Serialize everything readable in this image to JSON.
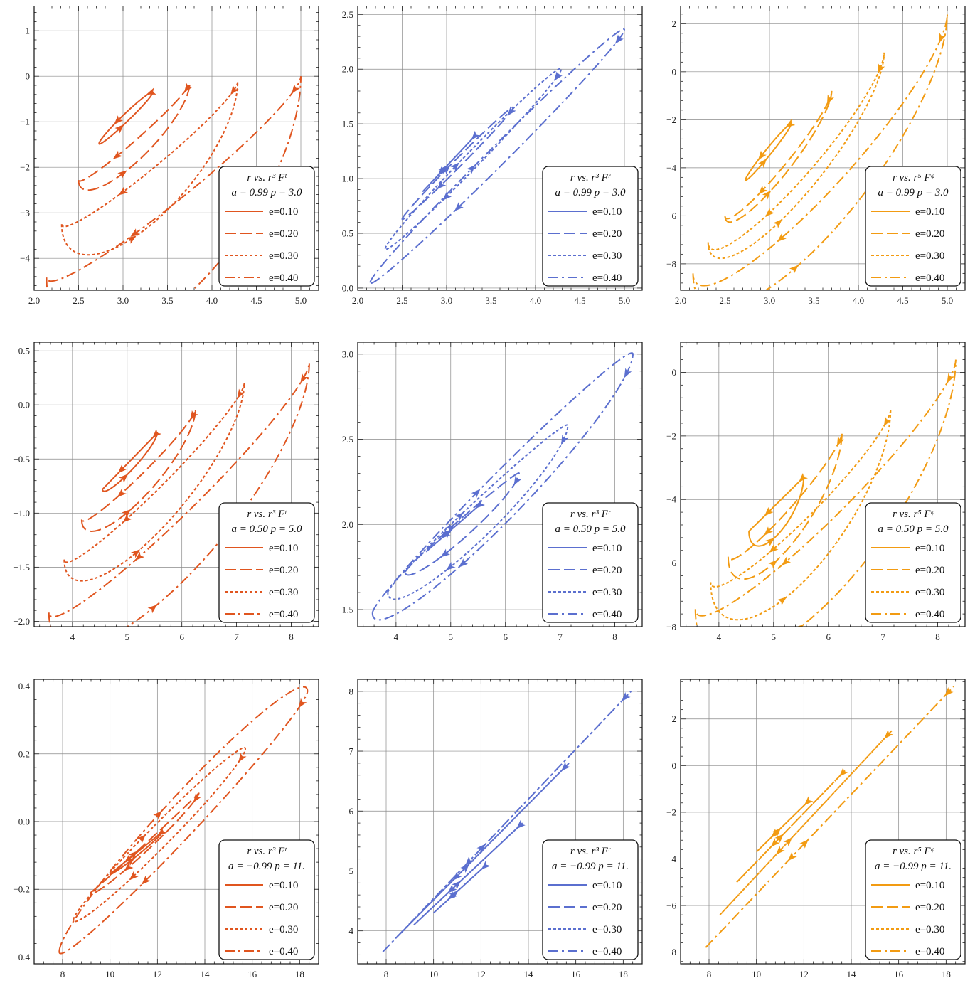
{
  "colors": {
    "Ft": "#e0551f",
    "Fr": "#5b6fcf",
    "Fphi": "#f29b12"
  },
  "legend_labels": [
    "e=0.10",
    "e=0.20",
    "e=0.30",
    "e=0.40"
  ],
  "charts": [
    {
      "id": "p1",
      "type": "line",
      "color": "Ft",
      "legend": {
        "title": "r vs. r³ Fᵗ",
        "params": "a = 0.99 p = 3.0"
      },
      "xlim": [
        2.0,
        5.2
      ],
      "ylim": [
        -4.7,
        1.55
      ],
      "xticks": [
        2.0,
        2.5,
        3.0,
        3.5,
        4.0,
        4.5,
        5.0
      ],
      "xtick_labels": [
        "2.0",
        "2.5",
        "3.0",
        "3.5",
        "4.0",
        "4.5",
        "5.0"
      ],
      "yticks": [
        -4,
        -3,
        -2,
        -1,
        0,
        1
      ],
      "ytick_labels": [
        "−4",
        "−3",
        "−2",
        "−1",
        "0",
        "1"
      ],
      "series": [
        {
          "e": 0.1,
          "rmin": 2.73,
          "rmax": 3.33,
          "yA": -1.48,
          "yB": -0.37,
          "yCA": -0.1,
          "yCB": -0.12
        },
        {
          "e": 0.2,
          "rmin": 2.5,
          "rmax": 3.75,
          "yA": -2.28,
          "yB": -0.15,
          "yCA": -0.72,
          "yCB": 0.22
        },
        {
          "e": 0.3,
          "rmin": 2.31,
          "rmax": 4.29,
          "yA": -3.25,
          "yB": -0.12,
          "yCA": -1.6,
          "yCB": 0.4
        },
        {
          "e": 0.4,
          "rmin": 2.14,
          "rmax": 5.0,
          "yA": -4.42,
          "yB": 0.0,
          "yCA": -2.85,
          "yCB": 0.6
        }
      ]
    },
    {
      "id": "p2",
      "type": "line",
      "color": "Fr",
      "legend": {
        "title": "r vs. r³ Fʳ",
        "params": "a = 0.99 p = 3.0"
      },
      "xlim": [
        2.0,
        5.2
      ],
      "ylim": [
        -0.02,
        2.58
      ],
      "xticks": [
        2.0,
        2.5,
        3.0,
        3.5,
        4.0,
        4.5,
        5.0
      ],
      "xtick_labels": [
        "2.0",
        "2.5",
        "3.0",
        "3.5",
        "4.0",
        "4.5",
        "5.0"
      ],
      "yticks": [
        0.0,
        0.5,
        1.0,
        1.5,
        2.0,
        2.5
      ],
      "ytick_labels": [
        "0.0",
        "0.5",
        "1.0",
        "1.5",
        "2.0",
        "2.5"
      ],
      "series": [
        {
          "e": 0.1,
          "rmin": 2.73,
          "rmax": 3.33,
          "yA": 0.88,
          "yB": 1.4,
          "yCA": 0.0,
          "yCB": 0.0
        },
        {
          "e": 0.2,
          "rmin": 2.5,
          "rmax": 3.75,
          "yA": 0.63,
          "yB": 1.65,
          "yCA": 0.05,
          "yCB": 0.05
        },
        {
          "e": 0.3,
          "rmin": 2.31,
          "rmax": 4.29,
          "yA": 0.36,
          "yB": 2.0,
          "yCA": 0.1,
          "yCB": 0.1
        },
        {
          "e": 0.4,
          "rmin": 2.14,
          "rmax": 5.0,
          "yA": 0.05,
          "yB": 2.36,
          "yCA": 0.12,
          "yCB": 0.12
        }
      ]
    },
    {
      "id": "p3",
      "type": "line",
      "color": "Fphi",
      "legend": {
        "title": "r vs. r⁵ Fᵠ",
        "params": "a = 0.99 p = 3.0"
      },
      "xlim": [
        2.0,
        5.2
      ],
      "ylim": [
        -9.1,
        2.75
      ],
      "xticks": [
        2.0,
        2.5,
        3.0,
        3.5,
        4.0,
        4.5,
        5.0
      ],
      "xtick_labels": [
        "2.0",
        "2.5",
        "3.0",
        "3.5",
        "4.0",
        "4.5",
        "5.0"
      ],
      "yticks": [
        -8,
        -6,
        -4,
        -2,
        0,
        2
      ],
      "ytick_labels": [
        "−8",
        "−6",
        "−4",
        "−2",
        "0",
        "2"
      ],
      "series": [
        {
          "e": 0.1,
          "rmin": 2.73,
          "rmax": 3.24,
          "yA": -4.5,
          "yB": -2.2,
          "yCA": -0.2,
          "yCB": -0.2
        },
        {
          "e": 0.2,
          "rmin": 2.5,
          "rmax": 3.7,
          "yA": -6.0,
          "yB": -0.8,
          "yCA": -1.2,
          "yCB": 0.8
        },
        {
          "e": 0.3,
          "rmin": 2.31,
          "rmax": 4.29,
          "yA": -7.1,
          "yB": 0.8,
          "yCA": -2.4,
          "yCB": 1.6
        },
        {
          "e": 0.4,
          "rmin": 2.14,
          "rmax": 5.0,
          "yA": -8.4,
          "yB": 2.4,
          "yCA": -4.2,
          "yCB": 2.4
        }
      ]
    },
    {
      "id": "p4",
      "type": "line",
      "color": "Ft",
      "legend": {
        "title": "r vs. r³ Fᵗ",
        "params": "a = 0.50 p = 5.0"
      },
      "xlim": [
        3.3,
        8.5
      ],
      "ylim": [
        -2.05,
        0.58
      ],
      "xticks": [
        4,
        5,
        6,
        7,
        8
      ],
      "xtick_labels": [
        "4",
        "5",
        "6",
        "7",
        "8"
      ],
      "yticks": [
        -2.0,
        -1.5,
        -1.0,
        -0.5,
        0.0,
        0.5
      ],
      "ytick_labels": [
        "−2.0",
        "−1.5",
        "−1.0",
        "−0.5",
        "0.0",
        "0.5"
      ],
      "series": [
        {
          "e": 0.1,
          "rmin": 4.55,
          "rmax": 5.55,
          "yA": -0.78,
          "yB": -0.26,
          "yCA": -0.1,
          "yCB": 0.0
        },
        {
          "e": 0.2,
          "rmin": 4.17,
          "rmax": 6.25,
          "yA": -1.06,
          "yB": -0.04,
          "yCA": -0.35,
          "yCB": 0.12
        },
        {
          "e": 0.3,
          "rmin": 3.85,
          "rmax": 7.14,
          "yA": -1.43,
          "yB": 0.2,
          "yCA": -0.6,
          "yCB": 0.2
        },
        {
          "e": 0.4,
          "rmin": 3.57,
          "rmax": 8.33,
          "yA": -1.92,
          "yB": 0.39,
          "yCA": -0.9,
          "yCB": 0.3
        }
      ]
    },
    {
      "id": "p5",
      "type": "line",
      "color": "Fr",
      "legend": {
        "title": "r vs. r³ Fʳ",
        "params": "a = 0.50 p = 5.0"
      },
      "xlim": [
        3.3,
        8.5
      ],
      "ylim": [
        1.4,
        3.07
      ],
      "xticks": [
        4,
        5,
        6,
        7,
        8
      ],
      "xtick_labels": [
        "4",
        "5",
        "6",
        "7",
        "8"
      ],
      "yticks": [
        1.5,
        2.0,
        2.5,
        3.0
      ],
      "ytick_labels": [
        "1.5",
        "2.0",
        "2.5",
        "3.0"
      ],
      "series": [
        {
          "e": 0.1,
          "rmin": 4.55,
          "rmax": 5.55,
          "yA": 1.84,
          "yB": 2.12,
          "yCA": 0.0,
          "yCB": 0.0
        },
        {
          "e": 0.2,
          "rmin": 4.17,
          "rmax": 6.25,
          "yA": 1.72,
          "yB": 2.3,
          "yCA": 0.03,
          "yCB": 0.1
        },
        {
          "e": 0.3,
          "rmin": 3.85,
          "rmax": 7.14,
          "yA": 1.6,
          "yB": 2.58,
          "yCA": 0.06,
          "yCB": 0.2
        },
        {
          "e": 0.4,
          "rmin": 3.57,
          "rmax": 8.33,
          "yA": 1.48,
          "yB": 3.0,
          "yCA": 0.1,
          "yCB": 0.25
        }
      ]
    },
    {
      "id": "p6",
      "type": "line",
      "color": "Fphi",
      "legend": {
        "title": "r vs. r⁵ Fᵠ",
        "params": "a = 0.50 p = 5.0"
      },
      "xlim": [
        3.3,
        8.5
      ],
      "ylim": [
        -8.0,
        0.95
      ],
      "xticks": [
        4,
        5,
        6,
        7,
        8
      ],
      "xtick_labels": [
        "4",
        "5",
        "6",
        "7",
        "8"
      ],
      "yticks": [
        -8,
        -6,
        -4,
        -2,
        0
      ],
      "ytick_labels": [
        "−8",
        "−6",
        "−4",
        "−2",
        "0"
      ],
      "series": [
        {
          "e": 0.1,
          "rmin": 4.55,
          "rmax": 5.55,
          "yA": -5.0,
          "yB": -3.3,
          "yCA": -1.0,
          "yCB": 0.0
        },
        {
          "e": 0.2,
          "rmin": 4.17,
          "rmax": 6.25,
          "yA": -5.8,
          "yB": -1.9,
          "yCA": -1.8,
          "yCB": 0.6
        },
        {
          "e": 0.3,
          "rmin": 3.85,
          "rmax": 7.14,
          "yA": -6.6,
          "yB": -1.15,
          "yCA": -2.8,
          "yCB": 0.9
        },
        {
          "e": 0.4,
          "rmin": 3.57,
          "rmax": 8.33,
          "yA": -7.45,
          "yB": 0.4,
          "yCA": -3.8,
          "yCB": 1.3
        }
      ]
    },
    {
      "id": "p7",
      "type": "line",
      "color": "Ft",
      "legend": {
        "title": "r vs. r³ Fᵗ",
        "params": "a = −0.99 p = 11."
      },
      "xlim": [
        6.8,
        18.8
      ],
      "ylim": [
        -0.42,
        0.42
      ],
      "xticks": [
        8,
        10,
        12,
        14,
        16,
        18
      ],
      "xtick_labels": [
        "8",
        "10",
        "12",
        "14",
        "16",
        "18"
      ],
      "yticks": [
        -0.4,
        -0.2,
        0.0,
        0.2,
        0.4
      ],
      "ytick_labels": [
        "−0.4",
        "−0.2",
        "0.0",
        "0.2",
        "0.4"
      ],
      "series": [
        {
          "e": 0.1,
          "rmin": 10.0,
          "rmax": 12.22,
          "yA": -0.155,
          "yB": -0.03,
          "yCA": -0.01,
          "yCB": 0.0
        },
        {
          "e": 0.2,
          "rmin": 9.17,
          "rmax": 13.75,
          "yA": -0.21,
          "yB": 0.085,
          "yCA": -0.005,
          "yCB": 0.03
        },
        {
          "e": 0.3,
          "rmin": 8.46,
          "rmax": 15.71,
          "yA": -0.29,
          "yB": 0.215,
          "yCA": 0.04,
          "yCB": 0.05
        },
        {
          "e": 0.4,
          "rmin": 7.86,
          "rmax": 18.33,
          "yA": -0.385,
          "yB": 0.385,
          "yCA": 0.1,
          "yCB": 0.06
        }
      ]
    },
    {
      "id": "p8",
      "type": "line",
      "color": "Fr",
      "legend": {
        "title": "r vs. r³ Fʳ",
        "params": "a = −0.99 p = 11."
      },
      "xlim": [
        6.8,
        18.8
      ],
      "ylim": [
        3.45,
        8.2
      ],
      "xticks": [
        8,
        10,
        12,
        14,
        16,
        18
      ],
      "xtick_labels": [
        "8",
        "10",
        "12",
        "14",
        "16",
        "18"
      ],
      "yticks": [
        4,
        5,
        6,
        7,
        8
      ],
      "ytick_labels": [
        "4",
        "5",
        "6",
        "7",
        "8"
      ],
      "series": [
        {
          "e": 0.1,
          "rmin": 10.0,
          "rmax": 12.22,
          "yA": 4.3,
          "yB": 5.1,
          "yCA": 0.0,
          "yCB": 0.0
        },
        {
          "e": 0.2,
          "rmin": 9.17,
          "rmax": 13.75,
          "yA": 4.1,
          "yB": 5.8,
          "yCA": 0.0,
          "yCB": 0.0
        },
        {
          "e": 0.3,
          "rmin": 8.46,
          "rmax": 15.71,
          "yA": 3.9,
          "yB": 6.8,
          "yCA": 0.0,
          "yCB": 0.0
        },
        {
          "e": 0.4,
          "rmin": 7.86,
          "rmax": 18.33,
          "yA": 3.65,
          "yB": 8.0,
          "yCA": 0.0,
          "yCB": 0.0
        }
      ]
    },
    {
      "id": "p9",
      "type": "line",
      "color": "Fphi",
      "legend": {
        "title": "r vs. r⁵ Fᵠ",
        "params": "a = −0.99 p = 11."
      },
      "xlim": [
        6.8,
        18.8
      ],
      "ylim": [
        -8.5,
        3.7
      ],
      "xticks": [
        8,
        10,
        12,
        14,
        16,
        18
      ],
      "xtick_labels": [
        "8",
        "10",
        "12",
        "14",
        "16",
        "18"
      ],
      "yticks": [
        -8,
        -6,
        -4,
        -2,
        0,
        2
      ],
      "ytick_labels": [
        "−8",
        "−6",
        "−4",
        "−2",
        "0",
        "2"
      ],
      "series": [
        {
          "e": 0.1,
          "rmin": 10.0,
          "rmax": 12.22,
          "yA": -3.7,
          "yB": -1.5,
          "yCA": 0.0,
          "yCB": 0.0
        },
        {
          "e": 0.2,
          "rmin": 9.17,
          "rmax": 13.75,
          "yA": -5.0,
          "yB": -0.2,
          "yCA": 0.0,
          "yCB": 0.0
        },
        {
          "e": 0.3,
          "rmin": 8.46,
          "rmax": 15.71,
          "yA": -6.4,
          "yB": 1.5,
          "yCA": 0.0,
          "yCB": 0.0
        },
        {
          "e": 0.4,
          "rmin": 7.86,
          "rmax": 18.33,
          "yA": -7.8,
          "yB": 3.4,
          "yCA": 0.0,
          "yCB": 0.0
        }
      ]
    }
  ]
}
